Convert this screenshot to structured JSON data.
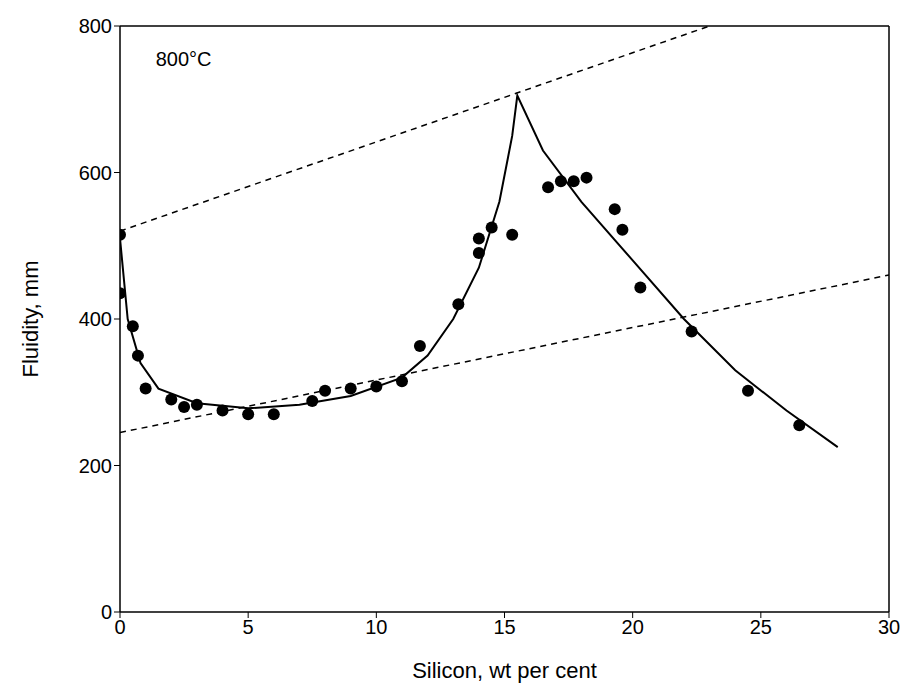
{
  "chart_data": {
    "type": "scatter",
    "x_label": "Silicon, wt per cent",
    "y_label": "Fluidity, mm",
    "annotation": {
      "text": "800°C",
      "x": 1.2,
      "y": 755
    },
    "xlim": [
      0,
      30
    ],
    "xticks": [
      0,
      5,
      10,
      15,
      20,
      25,
      30
    ],
    "ylim": [
      0,
      800
    ],
    "yticks": [
      0,
      200,
      400,
      600,
      800
    ],
    "grid": false,
    "series": [
      {
        "type": "scatter",
        "color": "#000000",
        "marker": "circle",
        "x": [
          0,
          0,
          0.5,
          0.7,
          1,
          2,
          2.5,
          3,
          4,
          5,
          6,
          7.5,
          8,
          9,
          10,
          11,
          11.7,
          13.2,
          14,
          14,
          14.5,
          15.3,
          16.7,
          17.2,
          17.7,
          18.2,
          19.3,
          19.6,
          20.3,
          22.3,
          24.5,
          26.5
        ],
        "values": [
          515,
          435,
          390,
          350,
          305,
          290,
          280,
          283,
          275,
          270,
          270,
          288,
          302,
          305,
          308,
          315,
          363,
          420,
          490,
          510,
          525,
          515,
          580,
          588,
          588,
          593,
          550,
          522,
          443,
          383,
          302,
          255
        ]
      },
      {
        "type": "line",
        "color": "#000000",
        "line_style": "solid",
        "x": [
          0,
          0.3,
          0.8,
          1.5,
          3,
          5,
          7,
          9,
          11,
          12,
          13,
          14,
          14.8,
          15.3,
          15.5,
          16.5,
          18,
          20,
          22,
          24,
          26,
          28
        ],
        "values": [
          510,
          400,
          340,
          305,
          285,
          278,
          283,
          295,
          320,
          350,
          400,
          470,
          560,
          650,
          705,
          630,
          560,
          480,
          400,
          330,
          275,
          225
        ]
      },
      {
        "type": "line",
        "color": "#000000",
        "line_style": "dashed",
        "x": [
          0,
          23
        ],
        "values": [
          520,
          800
        ]
      },
      {
        "type": "line",
        "color": "#000000",
        "line_style": "dashed",
        "x": [
          0,
          30
        ],
        "values": [
          245,
          460
        ]
      }
    ]
  }
}
